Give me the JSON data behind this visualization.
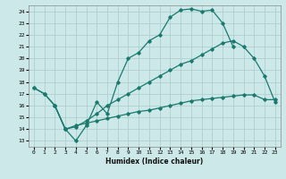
{
  "xlabel": "Humidex (Indice chaleur)",
  "bg_color": "#cce8e8",
  "grid_color": "#aacccc",
  "line_color": "#1a7a6e",
  "xlim": [
    -0.5,
    23.5
  ],
  "ylim": [
    12.5,
    24.5
  ],
  "xticks": [
    0,
    1,
    2,
    3,
    4,
    5,
    6,
    7,
    8,
    9,
    10,
    11,
    12,
    13,
    14,
    15,
    16,
    17,
    18,
    19,
    20,
    21,
    22,
    23
  ],
  "yticks": [
    13,
    14,
    15,
    16,
    17,
    18,
    19,
    20,
    21,
    22,
    23,
    24
  ],
  "curve1_x": [
    0,
    1,
    2,
    3,
    4,
    5,
    6,
    7,
    8,
    9,
    10,
    11,
    12,
    13,
    14,
    15,
    16,
    17,
    18,
    19
  ],
  "curve1_y": [
    17.5,
    17.0,
    16.0,
    14.0,
    13.0,
    14.3,
    16.3,
    15.3,
    18.0,
    20.0,
    20.5,
    21.5,
    22.0,
    23.5,
    24.1,
    24.2,
    24.0,
    24.1,
    23.0,
    21.0
  ],
  "curve2_x": [
    0,
    1,
    2,
    3,
    4,
    5,
    6,
    7,
    8,
    9,
    10,
    11,
    12,
    13,
    14,
    15,
    16,
    17,
    18,
    19,
    20,
    21,
    22,
    23
  ],
  "curve2_y": [
    17.5,
    17.0,
    16.0,
    14.0,
    14.2,
    14.7,
    15.3,
    16.0,
    16.5,
    17.0,
    17.5,
    18.0,
    18.5,
    19.0,
    19.5,
    19.8,
    20.3,
    20.8,
    21.3,
    21.5,
    21.0,
    20.0,
    18.5,
    16.3
  ],
  "curve3_x": [
    2,
    3,
    4,
    5,
    6,
    7,
    8,
    9,
    10,
    11,
    12,
    13,
    14,
    15,
    16,
    17,
    18,
    19,
    20,
    21,
    22,
    23
  ],
  "curve3_y": [
    16.0,
    14.0,
    14.3,
    14.5,
    14.7,
    14.9,
    15.1,
    15.3,
    15.5,
    15.6,
    15.8,
    16.0,
    16.2,
    16.4,
    16.5,
    16.6,
    16.7,
    16.8,
    16.9,
    16.9,
    16.5,
    16.5
  ]
}
